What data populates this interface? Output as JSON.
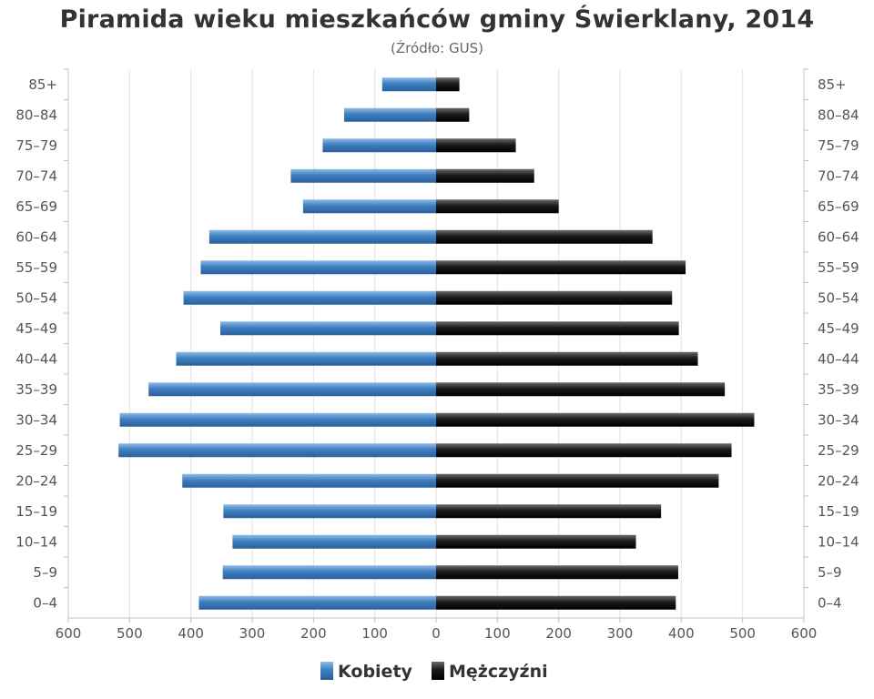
{
  "chart_data": {
    "type": "bar",
    "orientation": "horizontal-pyramid",
    "title": "Piramida wieku mieszkańców gminy Świerklany, 2014",
    "subtitle": "(Źródło: GUS)",
    "categories": [
      "85+",
      "80–84",
      "75–79",
      "70–74",
      "65–69",
      "60–64",
      "55–59",
      "50–54",
      "45–49",
      "40–44",
      "35–39",
      "30–34",
      "25–29",
      "20–24",
      "15–19",
      "10–14",
      "5–9",
      "0–4"
    ],
    "series": [
      {
        "name": "Kobiety",
        "color": "#4a86c5",
        "side": "left",
        "values": [
          88,
          150,
          185,
          237,
          217,
          370,
          384,
          412,
          352,
          424,
          469,
          516,
          518,
          414,
          347,
          332,
          348,
          387
        ]
      },
      {
        "name": "Mężczyźni",
        "color": "#1a1a1a",
        "side": "right",
        "values": [
          38,
          54,
          130,
          160,
          200,
          353,
          407,
          385,
          396,
          427,
          471,
          519,
          482,
          461,
          367,
          326,
          395,
          391
        ]
      }
    ],
    "xlim": [
      -600,
      600
    ],
    "x_ticks": [
      -600,
      -500,
      -400,
      -300,
      -200,
      -100,
      0,
      100,
      200,
      300,
      400,
      500,
      600
    ],
    "x_tick_labels": [
      "600",
      "500",
      "400",
      "300",
      "200",
      "100",
      "0",
      "100",
      "200",
      "300",
      "400",
      "500",
      "600"
    ],
    "grid": true,
    "legend": "bottom-center"
  }
}
